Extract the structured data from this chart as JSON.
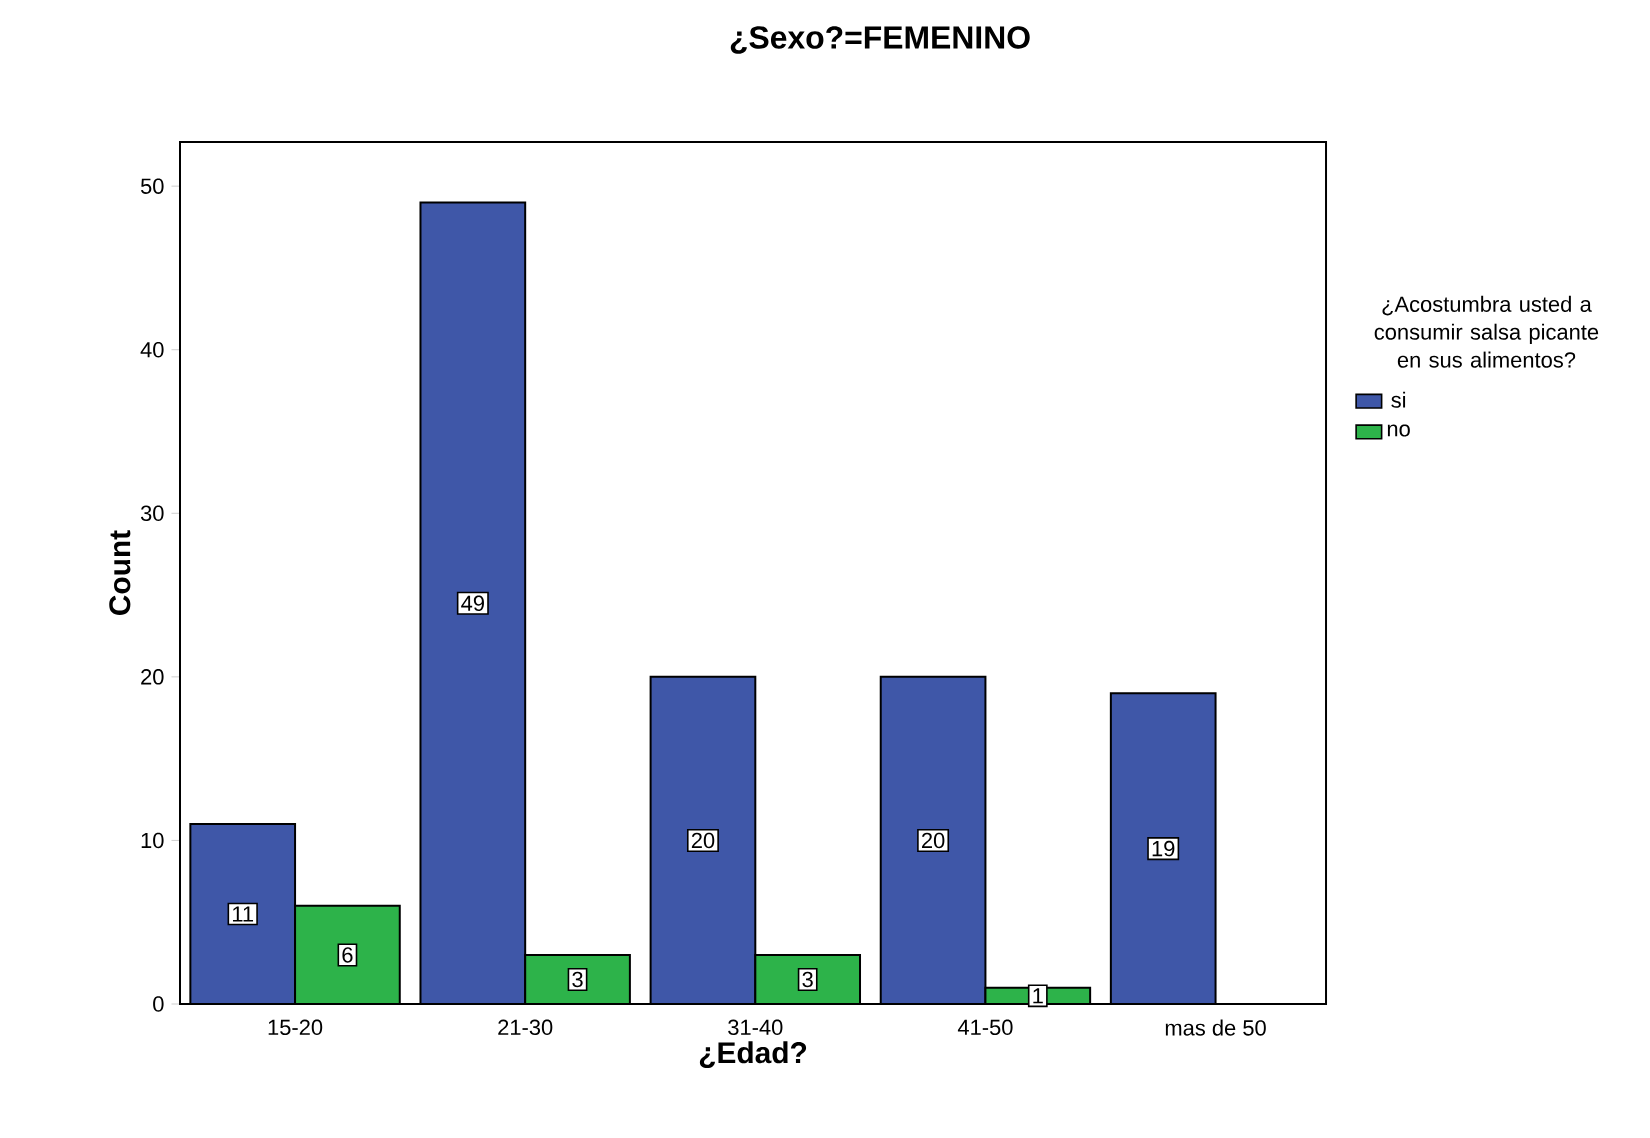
{
  "chart_data": {
    "type": "bar",
    "title": "¿Sexo?=FEMENINO",
    "xlabel": "¿Edad?",
    "ylabel": "Count",
    "legend_title": "¿Acostumbra usted a consumir salsa picante en sus alimentos?",
    "categories": [
      "15-20",
      "21-30",
      "31-40",
      "41-50",
      "mas de 50"
    ],
    "series": [
      {
        "name": "si",
        "color": "#3f57a8",
        "values": [
          11,
          49,
          20,
          20,
          19
        ]
      },
      {
        "name": "no",
        "color": "#2db34a",
        "values": [
          6,
          3,
          3,
          1,
          null
        ]
      }
    ],
    "ylim": [
      0,
      52.7
    ],
    "yticks": [
      0,
      10,
      20,
      30,
      40,
      50
    ],
    "data_labels": true,
    "legend": "right",
    "grid": false
  }
}
